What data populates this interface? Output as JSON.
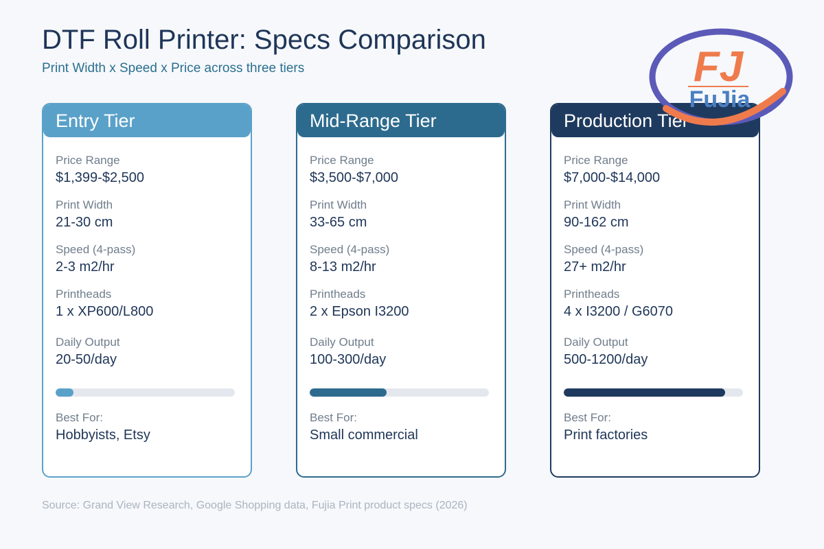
{
  "title": "DTF Roll Printer: Specs Comparison",
  "subtitle": "Print Width x Speed x Price across three tiers",
  "logo": {
    "mark": "FJ",
    "name": "FuJia",
    "colors": {
      "ring_blue": "#5b5ab8",
      "ring_orange": "#ef7b4d",
      "text_blue": "#4a7fc1"
    }
  },
  "labels": {
    "price": "Price Range",
    "width": "Print Width",
    "speed": "Speed (4-pass)",
    "heads": "Printheads",
    "output": "Daily Output",
    "best": "Best For:"
  },
  "tiers": [
    {
      "name": "Entry Tier",
      "color": "#5aa1c9",
      "price": "$1,399-$2,500",
      "width": "21-30 cm",
      "speed": "2-3 m2/hr",
      "heads": "1 x XP600/L800",
      "output": "20-50/day",
      "output_level": 0.1,
      "best": "Hobbyists, Etsy"
    },
    {
      "name": "Mid-Range Tier",
      "color": "#2d6b8e",
      "price": "$3,500-$7,000",
      "width": "33-65 cm",
      "speed": "8-13 m2/hr",
      "heads": "2 x Epson I3200",
      "output": "100-300/day",
      "output_level": 0.43,
      "best": "Small commercial"
    },
    {
      "name": "Production Tier",
      "color": "#1f3a5f",
      "price": "$7,000-$14,000",
      "width": "90-162 cm",
      "speed": "27+ m2/hr",
      "heads": "4 x I3200 / G6070",
      "output": "500-1200/day",
      "output_level": 0.9,
      "best": "Print factories"
    }
  ],
  "source": "Source: Grand View Research, Google Shopping data, Fujia Print product specs (2026)"
}
